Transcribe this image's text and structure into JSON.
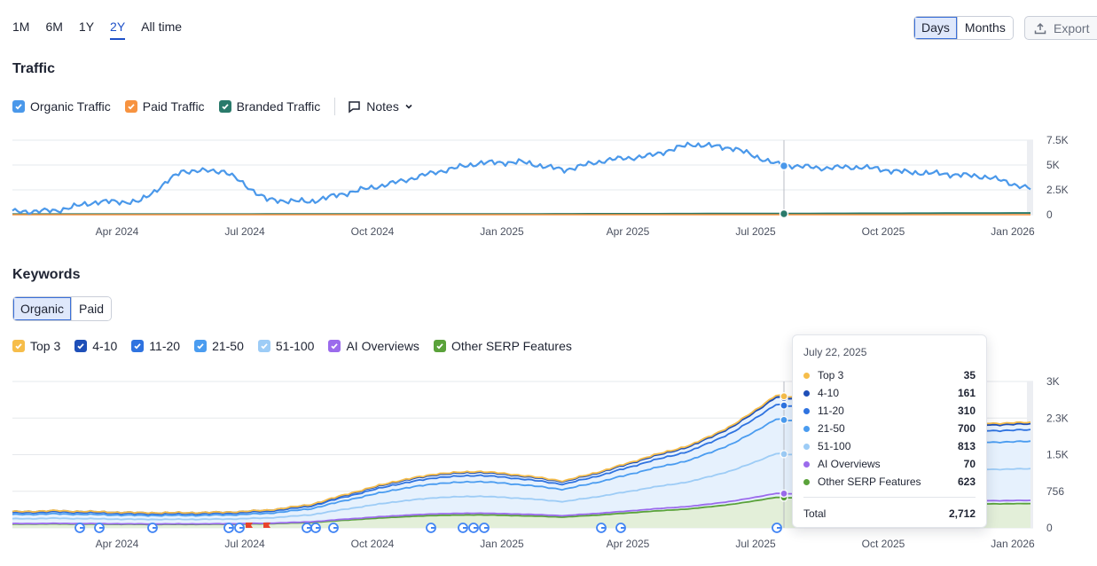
{
  "range_tabs": [
    {
      "label": "1M",
      "active": false
    },
    {
      "label": "6M",
      "active": false
    },
    {
      "label": "1Y",
      "active": false
    },
    {
      "label": "2Y",
      "active": true
    },
    {
      "label": "All time",
      "active": false
    }
  ],
  "granularity": {
    "days": "Days",
    "months": "Months",
    "selected": "Days"
  },
  "export_label": "Export",
  "traffic": {
    "title": "Traffic",
    "legend": [
      {
        "label": "Organic Traffic",
        "color": "#4a98ea",
        "checked": true
      },
      {
        "label": "Paid Traffic",
        "color": "#f79340",
        "checked": true
      },
      {
        "label": "Branded Traffic",
        "color": "#2a7a6b",
        "checked": true
      }
    ],
    "notes_label": "Notes"
  },
  "keywords": {
    "title": "Keywords",
    "tabs": [
      {
        "label": "Organic",
        "active": true
      },
      {
        "label": "Paid",
        "active": false
      }
    ],
    "legend": [
      {
        "label": "Top 3",
        "color": "#f6bd4a",
        "checked": true
      },
      {
        "label": "4-10",
        "color": "#1e4fb8",
        "checked": true
      },
      {
        "label": "11-20",
        "color": "#2f73e0",
        "checked": true
      },
      {
        "label": "21-50",
        "color": "#4a9cf0",
        "checked": true
      },
      {
        "label": "51-100",
        "color": "#9dccf6",
        "checked": true
      },
      {
        "label": "AI Overviews",
        "color": "#9b6bec",
        "checked": true
      },
      {
        "label": "Other SERP Features",
        "color": "#5aa23a",
        "checked": true
      }
    ]
  },
  "x_axis_labels": [
    "Apr 2024",
    "Jul 2024",
    "Oct 2024",
    "Jan 2025",
    "Apr 2025",
    "Jul 2025",
    "Oct 2025",
    "Jan 2026"
  ],
  "chart_data": [
    {
      "type": "line",
      "title": "Traffic",
      "x": [
        "2024-01",
        "2024-02",
        "2024-03",
        "2024-04",
        "2024-05",
        "2024-06",
        "2024-07",
        "2024-08",
        "2024-09",
        "2024-10",
        "2024-11",
        "2024-12",
        "2025-01",
        "2025-02",
        "2025-03",
        "2025-04",
        "2025-05",
        "2025-06",
        "2025-07",
        "2025-08",
        "2025-09",
        "2025-10",
        "2025-11",
        "2025-12",
        "2026-01"
      ],
      "series": [
        {
          "name": "Organic Traffic",
          "color": "#4a98ea",
          "values": [
            300,
            400,
            1300,
            1300,
            4400,
            4400,
            1500,
            1300,
            2300,
            3200,
            4300,
            5200,
            5300,
            4500,
            5500,
            5900,
            7100,
            6700,
            5100,
            4700,
            4800,
            4300,
            4100,
            3800,
            2600
          ]
        },
        {
          "name": "Paid Traffic",
          "color": "#f79340",
          "values": [
            0,
            0,
            0,
            0,
            0,
            0,
            0,
            0,
            0,
            0,
            0,
            0,
            0,
            0,
            0,
            0,
            0,
            0,
            0,
            0,
            0,
            0,
            0,
            0,
            0
          ]
        },
        {
          "name": "Branded Traffic",
          "color": "#2a7a6b",
          "values": [
            50,
            50,
            50,
            50,
            50,
            50,
            60,
            60,
            60,
            60,
            60,
            70,
            70,
            80,
            90,
            90,
            100,
            110,
            120,
            120,
            130,
            140,
            150,
            160,
            170
          ]
        }
      ],
      "y_ticks": [
        "7.5K",
        "5K",
        "2.5K",
        "0"
      ],
      "ylim": [
        0,
        7500
      ]
    },
    {
      "type": "area",
      "title": "Keywords",
      "x": [
        "2024-01",
        "2024-02",
        "2024-03",
        "2024-04",
        "2024-05",
        "2024-06",
        "2024-07",
        "2024-08",
        "2024-09",
        "2024-10",
        "2024-11",
        "2024-12",
        "2025-01",
        "2025-02",
        "2025-03",
        "2025-04",
        "2025-05",
        "2025-06",
        "2025-07",
        "2025-08",
        "2025-09",
        "2025-10",
        "2025-11",
        "2025-12",
        "2026-01"
      ],
      "stacked_totals": [
        330,
        350,
        330,
        310,
        310,
        320,
        360,
        470,
        720,
        950,
        1110,
        1160,
        1080,
        960,
        1190,
        1460,
        1700,
        2110,
        2712,
        2630,
        2420,
        2320,
        2260,
        2140,
        2160
      ],
      "series_at_jul_22_2025": [
        {
          "name": "Top 3",
          "value": 35
        },
        {
          "name": "4-10",
          "value": 161
        },
        {
          "name": "11-20",
          "value": 310
        },
        {
          "name": "21-50",
          "value": 700
        },
        {
          "name": "51-100",
          "value": 813
        },
        {
          "name": "AI Overviews",
          "value": 70
        },
        {
          "name": "Other SERP Features",
          "value": 623
        }
      ],
      "y_ticks": [
        "3K",
        "2.3K",
        "1.5K",
        "756",
        "0"
      ],
      "ylim": [
        0,
        3000
      ]
    }
  ],
  "tooltip": {
    "date": "July 22, 2025",
    "rows": [
      {
        "label": "Top 3",
        "value": "35",
        "color": "#f6bd4a"
      },
      {
        "label": "4-10",
        "value": "161",
        "color": "#1e4fb8"
      },
      {
        "label": "11-20",
        "value": "310",
        "color": "#2f73e0"
      },
      {
        "label": "21-50",
        "value": "700",
        "color": "#4a9cf0"
      },
      {
        "label": "51-100",
        "value": "813",
        "color": "#9dccf6"
      },
      {
        "label": "AI Overviews",
        "value": "70",
        "color": "#9b6bec"
      },
      {
        "label": "Other SERP Features",
        "value": "623",
        "color": "#5aa23a"
      }
    ],
    "total_label": "Total",
    "total_value": "2,712"
  }
}
